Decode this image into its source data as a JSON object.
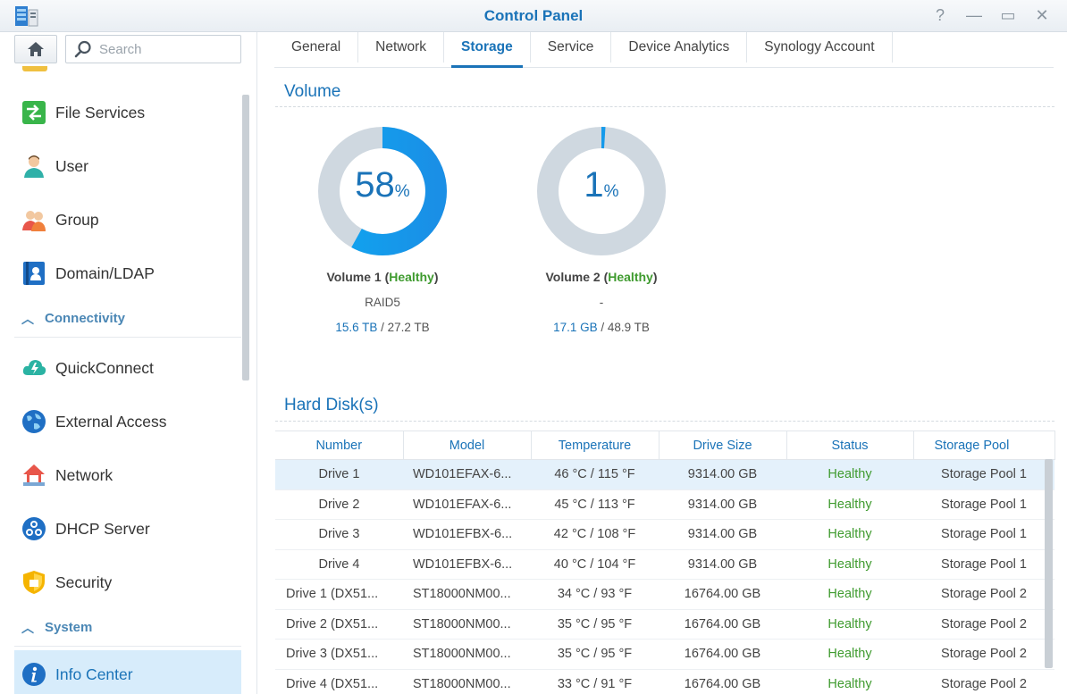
{
  "window": {
    "title": "Control Panel",
    "help": "?",
    "minimize": "—",
    "maximize": "▭",
    "close": "✕"
  },
  "sidebar": {
    "search_placeholder": "Search",
    "items_a": [
      {
        "name": "file-services",
        "label": "File Services",
        "icon": "file-services-icon"
      },
      {
        "name": "user",
        "label": "User",
        "icon": "user-icon"
      },
      {
        "name": "group",
        "label": "Group",
        "icon": "group-icon"
      },
      {
        "name": "domain-ldap",
        "label": "Domain/LDAP",
        "icon": "domain-ldap-icon"
      }
    ],
    "section_connectivity": "Connectivity",
    "items_b": [
      {
        "name": "quickconnect",
        "label": "QuickConnect",
        "icon": "quickconnect-icon"
      },
      {
        "name": "external-access",
        "label": "External Access",
        "icon": "external-access-icon"
      },
      {
        "name": "network",
        "label": "Network",
        "icon": "network-icon"
      },
      {
        "name": "dhcp-server",
        "label": "DHCP Server",
        "icon": "dhcp-server-icon"
      },
      {
        "name": "security",
        "label": "Security",
        "icon": "security-icon"
      }
    ],
    "section_system": "System",
    "items_c": [
      {
        "name": "info-center",
        "label": "Info Center",
        "icon": "info-icon",
        "active": true
      }
    ]
  },
  "tabs": [
    "General",
    "Network",
    "Storage",
    "Service",
    "Device Analytics",
    "Synology Account"
  ],
  "active_tab": "Storage",
  "volume_section": {
    "title": "Volume",
    "volumes": [
      {
        "percent": 58,
        "pct_sign": "%",
        "name": "Volume 1",
        "status": "Healthy",
        "raid": "RAID5",
        "used": "15.6 TB",
        "total": " / 27.2 TB",
        "color_used": "#1a8fe6",
        "color_free": "#cfd8e0"
      },
      {
        "percent": 1,
        "pct_sign": "%",
        "name": "Volume 2",
        "status": "Healthy",
        "raid": "-",
        "used": "17.1 GB",
        "total": " / 48.9 TB",
        "color_used": "#1a8fe6",
        "color_free": "#cfd8e0"
      }
    ]
  },
  "disks_section": {
    "title": "Hard Disk(s)",
    "columns": [
      "Number",
      "Model",
      "Temperature",
      "Drive Size",
      "Status",
      "Storage Pool"
    ],
    "rows": [
      [
        "Drive 1",
        "WD101EFAX-6...",
        "46 °C / 115 °F",
        "9314.00 GB",
        "Healthy",
        "Storage Pool 1"
      ],
      [
        "Drive 2",
        "WD101EFAX-6...",
        "45 °C / 113 °F",
        "9314.00 GB",
        "Healthy",
        "Storage Pool 1"
      ],
      [
        "Drive 3",
        "WD101EFBX-6...",
        "42 °C / 108 °F",
        "9314.00 GB",
        "Healthy",
        "Storage Pool 1"
      ],
      [
        "Drive 4",
        "WD101EFBX-6...",
        "40 °C / 104 °F",
        "9314.00 GB",
        "Healthy",
        "Storage Pool 1"
      ],
      [
        "Drive 1 (DX51...",
        "ST18000NM00...",
        "34 °C / 93 °F",
        "16764.00 GB",
        "Healthy",
        "Storage Pool 2"
      ],
      [
        "Drive 2 (DX51...",
        "ST18000NM00...",
        "35 °C / 95 °F",
        "16764.00 GB",
        "Healthy",
        "Storage Pool 2"
      ],
      [
        "Drive 3 (DX51...",
        "ST18000NM00...",
        "35 °C / 95 °F",
        "16764.00 GB",
        "Healthy",
        "Storage Pool 2"
      ],
      [
        "Drive 4 (DX51...",
        "ST18000NM00...",
        "33 °C / 91 °F",
        "16764.00 GB",
        "Healthy",
        "Storage Pool 2"
      ]
    ],
    "selected_row": 0
  }
}
